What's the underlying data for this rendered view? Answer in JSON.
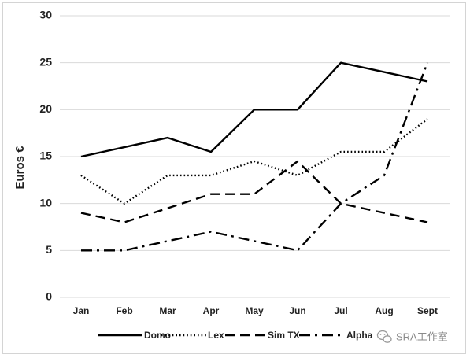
{
  "chart_data": {
    "type": "line",
    "title": "",
    "xlabel": "",
    "ylabel": "Euros  €",
    "ylim": [
      0,
      30
    ],
    "yticks": [
      0,
      5,
      10,
      15,
      20,
      25,
      30
    ],
    "grid": "horizontal",
    "legend_position": "bottom",
    "categories": [
      "Jan",
      "Feb",
      "Mar",
      "Apr",
      "May",
      "Jun",
      "Jul",
      "Aug",
      "Sept"
    ],
    "series": [
      {
        "name": "Domo",
        "style": "solid",
        "color": "#000000",
        "values": [
          15,
          16,
          17,
          15.5,
          20,
          20,
          25,
          24,
          23
        ]
      },
      {
        "name": "Lex",
        "style": "dotted",
        "color": "#000000",
        "values": [
          13,
          10,
          13,
          13,
          14.5,
          13,
          15.5,
          15.5,
          19
        ]
      },
      {
        "name": "Sim TX",
        "style": "dashed",
        "color": "#000000",
        "values": [
          9,
          8,
          9.5,
          11,
          11,
          14.5,
          10,
          9,
          8
        ]
      },
      {
        "name": "Alpha",
        "style": "dash-dot",
        "color": "#000000",
        "values": [
          5,
          5,
          6,
          7,
          6,
          5,
          10,
          13,
          25
        ]
      }
    ]
  },
  "watermark": {
    "icon": "wechat-icon",
    "text": "SRA工作室"
  }
}
